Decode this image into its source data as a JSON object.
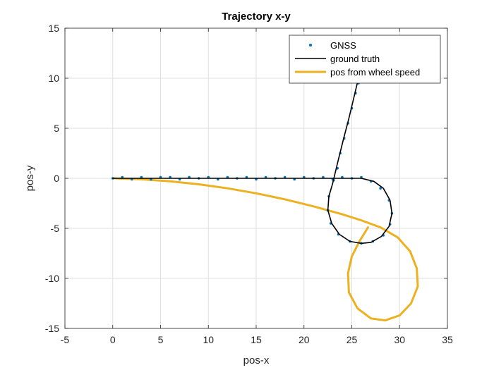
{
  "chart_data": {
    "type": "line",
    "title": "Trajectory x-y",
    "xlabel": "pos-x",
    "ylabel": "pos-y",
    "xlim": [
      -5,
      35
    ],
    "ylim": [
      -15,
      15
    ],
    "xticks": [
      "-5",
      "0",
      "5",
      "10",
      "15",
      "20",
      "25",
      "30",
      "35"
    ],
    "yticks": [
      "15",
      "10",
      "5",
      "0",
      "-5",
      "-10",
      "-15"
    ],
    "grid": true,
    "legend_position": "top-right",
    "series": [
      {
        "name": "GNSS",
        "style": "markers",
        "color": "#0072BD",
        "points": [
          [
            0,
            0
          ],
          [
            1,
            0.1
          ],
          [
            2,
            -0.1
          ],
          [
            3,
            0.1
          ],
          [
            4,
            -0.1
          ],
          [
            5,
            0.1
          ],
          [
            6,
            0.1
          ],
          [
            7,
            -0.1
          ],
          [
            8,
            0.1
          ],
          [
            9,
            0
          ],
          [
            10,
            0.1
          ],
          [
            11,
            -0.1
          ],
          [
            12,
            0.1
          ],
          [
            13,
            0
          ],
          [
            14,
            0.1
          ],
          [
            15,
            -0.1
          ],
          [
            16,
            0.1
          ],
          [
            17,
            0
          ],
          [
            18,
            0.1
          ],
          [
            19,
            -0.1
          ],
          [
            20,
            0.1
          ],
          [
            21,
            0
          ],
          [
            22,
            0.1
          ],
          [
            23,
            -0.1
          ],
          [
            24,
            0.1
          ],
          [
            25,
            0
          ],
          [
            26,
            0.1
          ],
          [
            27,
            -0.3
          ],
          [
            28,
            -1.0
          ],
          [
            28.9,
            -2.2
          ],
          [
            29.2,
            -3.5
          ],
          [
            29,
            -4.6
          ],
          [
            28.3,
            -5.7
          ],
          [
            27.2,
            -6.3
          ],
          [
            26,
            -6.5
          ],
          [
            24.8,
            -6.3
          ],
          [
            23.6,
            -5.6
          ],
          [
            22.8,
            -4.5
          ],
          [
            22.5,
            -3.2
          ],
          [
            22.6,
            -1.8
          ],
          [
            23.1,
            -0.2
          ],
          [
            23.5,
            1.0
          ],
          [
            23.8,
            2.5
          ],
          [
            24.2,
            4.0
          ],
          [
            24.6,
            5.5
          ],
          [
            25.0,
            7.0
          ],
          [
            25.4,
            8.5
          ],
          [
            25.7,
            9.5
          ]
        ]
      },
      {
        "name": "ground truth",
        "style": "line",
        "color": "#000000",
        "points": [
          [
            0,
            0
          ],
          [
            10,
            0
          ],
          [
            20,
            0
          ],
          [
            26,
            0
          ],
          [
            27.3,
            -0.3
          ],
          [
            28.3,
            -1.0
          ],
          [
            29.0,
            -2.2
          ],
          [
            29.2,
            -3.5
          ],
          [
            28.9,
            -4.8
          ],
          [
            28.1,
            -5.8
          ],
          [
            27.0,
            -6.4
          ],
          [
            26.0,
            -6.5
          ],
          [
            24.8,
            -6.3
          ],
          [
            23.7,
            -5.6
          ],
          [
            22.9,
            -4.5
          ],
          [
            22.5,
            -3.2
          ],
          [
            22.6,
            -1.8
          ],
          [
            23.0,
            -0.5
          ],
          [
            23.5,
            1.5
          ],
          [
            24.1,
            3.8
          ],
          [
            24.7,
            6.0
          ],
          [
            25.2,
            8.0
          ],
          [
            25.6,
            9.6
          ]
        ]
      },
      {
        "name": "pos from wheel speed",
        "style": "line",
        "color": "#EDB120",
        "points": [
          [
            0,
            0
          ],
          [
            3,
            -0.1
          ],
          [
            6,
            -0.3
          ],
          [
            9,
            -0.6
          ],
          [
            12,
            -1.0
          ],
          [
            15,
            -1.5
          ],
          [
            18,
            -2.1
          ],
          [
            21,
            -2.8
          ],
          [
            24,
            -3.6
          ],
          [
            26,
            -4.2
          ],
          [
            28,
            -4.9
          ],
          [
            29.8,
            -5.9
          ],
          [
            31.1,
            -7.3
          ],
          [
            31.8,
            -9.0
          ],
          [
            31.9,
            -10.8
          ],
          [
            31.2,
            -12.5
          ],
          [
            30.0,
            -13.7
          ],
          [
            28.5,
            -14.2
          ],
          [
            27.0,
            -14.0
          ],
          [
            25.6,
            -13.0
          ],
          [
            24.7,
            -11.4
          ],
          [
            24.6,
            -9.5
          ],
          [
            25.0,
            -7.8
          ],
          [
            25.8,
            -6.3
          ],
          [
            26.7,
            -4.9
          ]
        ]
      }
    ]
  }
}
